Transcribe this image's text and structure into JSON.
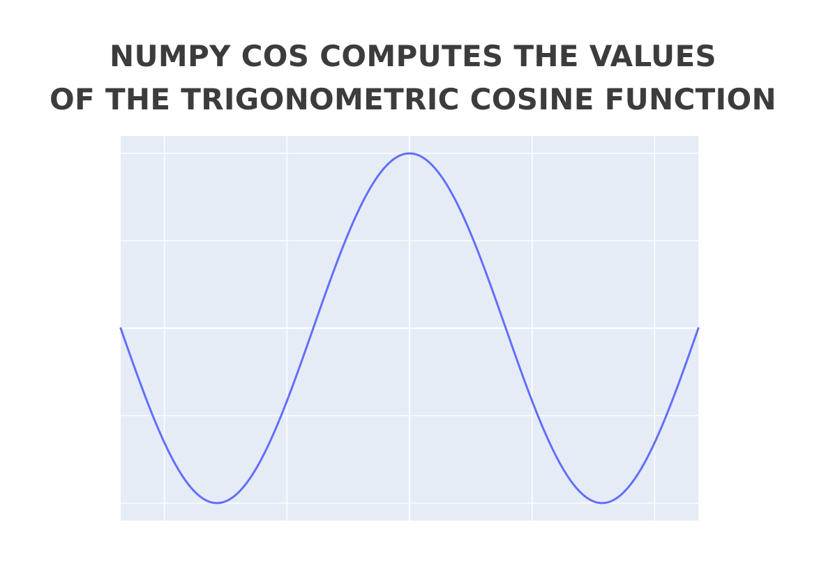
{
  "chart_data": {
    "type": "line",
    "title_lines": [
      "NUMPY COS COMPUTES THE VALUES",
      "OF THE TRIGONOMETRIC COSINE FUNCTION"
    ],
    "function": "cos",
    "xlim": [
      -4.712,
      4.712
    ],
    "ylim": [
      -1.1,
      1.1
    ],
    "x_gridlines": [
      -4,
      -2,
      0,
      2,
      4
    ],
    "y_gridlines": [
      -1,
      -0.5,
      0,
      0.5,
      1
    ],
    "grid": true,
    "legend": "none",
    "series": [
      {
        "x": [
          -4.712,
          -4.5,
          -4.0,
          -3.5,
          -3.1416,
          -3.0,
          -2.5,
          -2.0,
          -1.5708,
          -1.0,
          -0.5,
          0.0,
          0.5,
          1.0,
          1.5708,
          2.0,
          2.5,
          3.0,
          3.1416,
          3.5,
          4.0,
          4.5,
          4.712
        ],
        "y": [
          0.0,
          -0.211,
          -0.654,
          -0.936,
          -1.0,
          -0.99,
          -0.801,
          -0.416,
          0.0,
          0.54,
          0.878,
          1.0,
          0.878,
          0.54,
          0.0,
          -0.416,
          -0.801,
          -0.99,
          -1.0,
          -0.936,
          -0.654,
          -0.211,
          0.0
        ]
      }
    ]
  },
  "colors": {
    "plot_background": "#e5ecf6",
    "grid": "#ffffff",
    "line": "#636efa",
    "title": "#3c3c3c"
  }
}
